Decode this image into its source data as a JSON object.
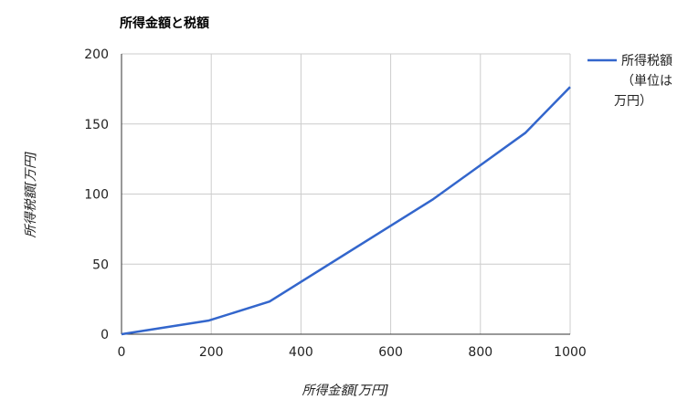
{
  "chart_data": {
    "type": "line",
    "title": "所得金額と税額",
    "xlabel": "所得金額[万円]",
    "ylabel": "所得税額[万円]",
    "xlim": [
      0,
      1000
    ],
    "ylim": [
      0,
      200
    ],
    "x_ticks": [
      0,
      200,
      400,
      600,
      800,
      1000
    ],
    "y_ticks": [
      0,
      50,
      100,
      150,
      200
    ],
    "grid": true,
    "legend_position": "right",
    "series": [
      {
        "name": "所得税額（単位は万円）",
        "legend_lines": [
          "所得税額",
          "（単位は",
          "万円）"
        ],
        "color": "#3366cc",
        "points": [
          [
            0,
            0
          ],
          [
            195,
            9.8
          ],
          [
            330,
            23.3
          ],
          [
            695,
            96.4
          ],
          [
            900,
            143.6
          ],
          [
            1000,
            176.4
          ]
        ]
      }
    ],
    "colors": {
      "grid": "#cccccc",
      "axis": "#333333"
    }
  }
}
